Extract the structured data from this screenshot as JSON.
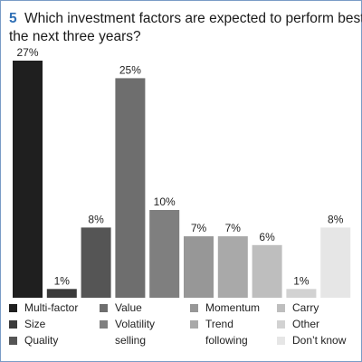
{
  "chart_data": {
    "type": "bar",
    "number": "5",
    "title_lines": [
      "Which investment factors are expected to perform best over",
      "the next three years?"
    ],
    "categories": [
      "Multi-factor",
      "Size",
      "Quality",
      "Value",
      "Volatility selling",
      "Momentum",
      "Trend following",
      "Carry",
      "Other",
      "Don’t know"
    ],
    "values": [
      27,
      1,
      8,
      25,
      10,
      7,
      7,
      6,
      1,
      8
    ],
    "value_labels": [
      "27%",
      "1%",
      "8%",
      "25%",
      "10%",
      "7%",
      "7%",
      "6%",
      "1%",
      "8%"
    ],
    "colors": [
      "#1f1f1f",
      "#3b3b3b",
      "#555555",
      "#6e6e6e",
      "#7f7f7f",
      "#979797",
      "#a9a9a9",
      "#bebebe",
      "#d2d2d2",
      "#e6e6e6"
    ],
    "legend": [
      {
        "lines": [
          "Multi-factor"
        ]
      },
      {
        "lines": [
          "Size"
        ]
      },
      {
        "lines": [
          "Quality"
        ]
      },
      {
        "lines": [
          "Value"
        ]
      },
      {
        "lines": [
          "Volatility",
          "selling"
        ]
      },
      {
        "lines": [
          "Momentum"
        ]
      },
      {
        "lines": [
          "Trend",
          "following"
        ]
      },
      {
        "lines": [
          "Carry"
        ]
      },
      {
        "lines": [
          "Other"
        ]
      },
      {
        "lines": [
          "Don’t know"
        ]
      }
    ],
    "ylim": [
      0,
      27
    ],
    "grid": false,
    "legend_position": "bottom"
  },
  "colors": {
    "title_number": "#2f6fb5",
    "border": "#7a9cc6"
  }
}
